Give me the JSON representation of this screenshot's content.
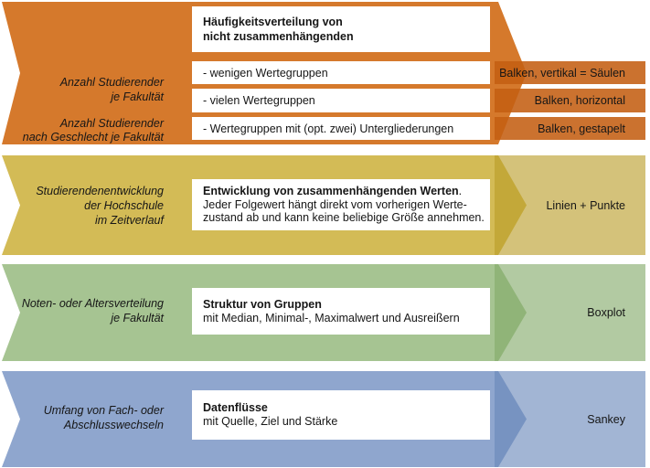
{
  "bands": [
    {
      "topic": "Haeufigkeitsverteilung",
      "band_color": "#D5792C",
      "overlay_color": "rgba(196,94,18,0.88)",
      "left_labels": [
        {
          "line1": "Anzahl Studierender",
          "line2": "je Fakultät"
        },
        {
          "line1": "Anzahl Studierender",
          "line2": "nach Geschlecht je Fakultät"
        }
      ],
      "box_title_line1": "Häufigkeitsverteilung von",
      "box_title_line2": "nicht zusammenhängenden",
      "rows": [
        {
          "criterion": "- wenigen Wertegruppen",
          "chart_type": "Balken, vertikal = Säulen"
        },
        {
          "criterion": "- vielen Wertegruppen",
          "chart_type": "Balken, horizontal"
        },
        {
          "criterion": "- Wertegruppen mit (opt. zwei) Untergliederungen",
          "chart_type": "Balken, gestapelt"
        }
      ]
    },
    {
      "topic": "Entwicklung im Zeitverlauf",
      "band_color": "#D3BB56",
      "overlay_color": "rgba(186,156,40,0.62)",
      "left_label": {
        "line1": "Studierendenentwicklung",
        "line2": "der Hochschule",
        "line3": "im Zeitverlauf"
      },
      "box": {
        "bold": "Entwicklung von zusammenhängenden Werten",
        "after_bold": ".",
        "line2": "Jeder Folgewert hängt direkt vom vorherigen Werte-",
        "line3": "zustand ab und kann keine beliebige Größe annehmen."
      },
      "chart_type": "Linien + Punkte"
    },
    {
      "topic": "Struktur von Gruppen",
      "band_color": "#A6C492",
      "overlay_color": "rgba(130,170,105,0.62)",
      "left_label": {
        "line1": "Noten- oder Altersverteilung",
        "line2": "je Fakultät"
      },
      "box": {
        "bold": "Struktur von Gruppen",
        "line2": "mit Median, Minimal-, Maximalwert und Ausreißern"
      },
      "chart_type": "Boxplot"
    },
    {
      "topic": "Datenfluesse",
      "band_color": "#8FA6CE",
      "overlay_color": "rgba(105,135,185,0.62)",
      "left_label": {
        "line1": "Umfang von Fach- oder",
        "line2": "Abschlusswechseln"
      },
      "box": {
        "bold": "Datenflüsse",
        "line2": "mit Quelle, Ziel und Stärke"
      },
      "chart_type": "Sankey"
    }
  ]
}
